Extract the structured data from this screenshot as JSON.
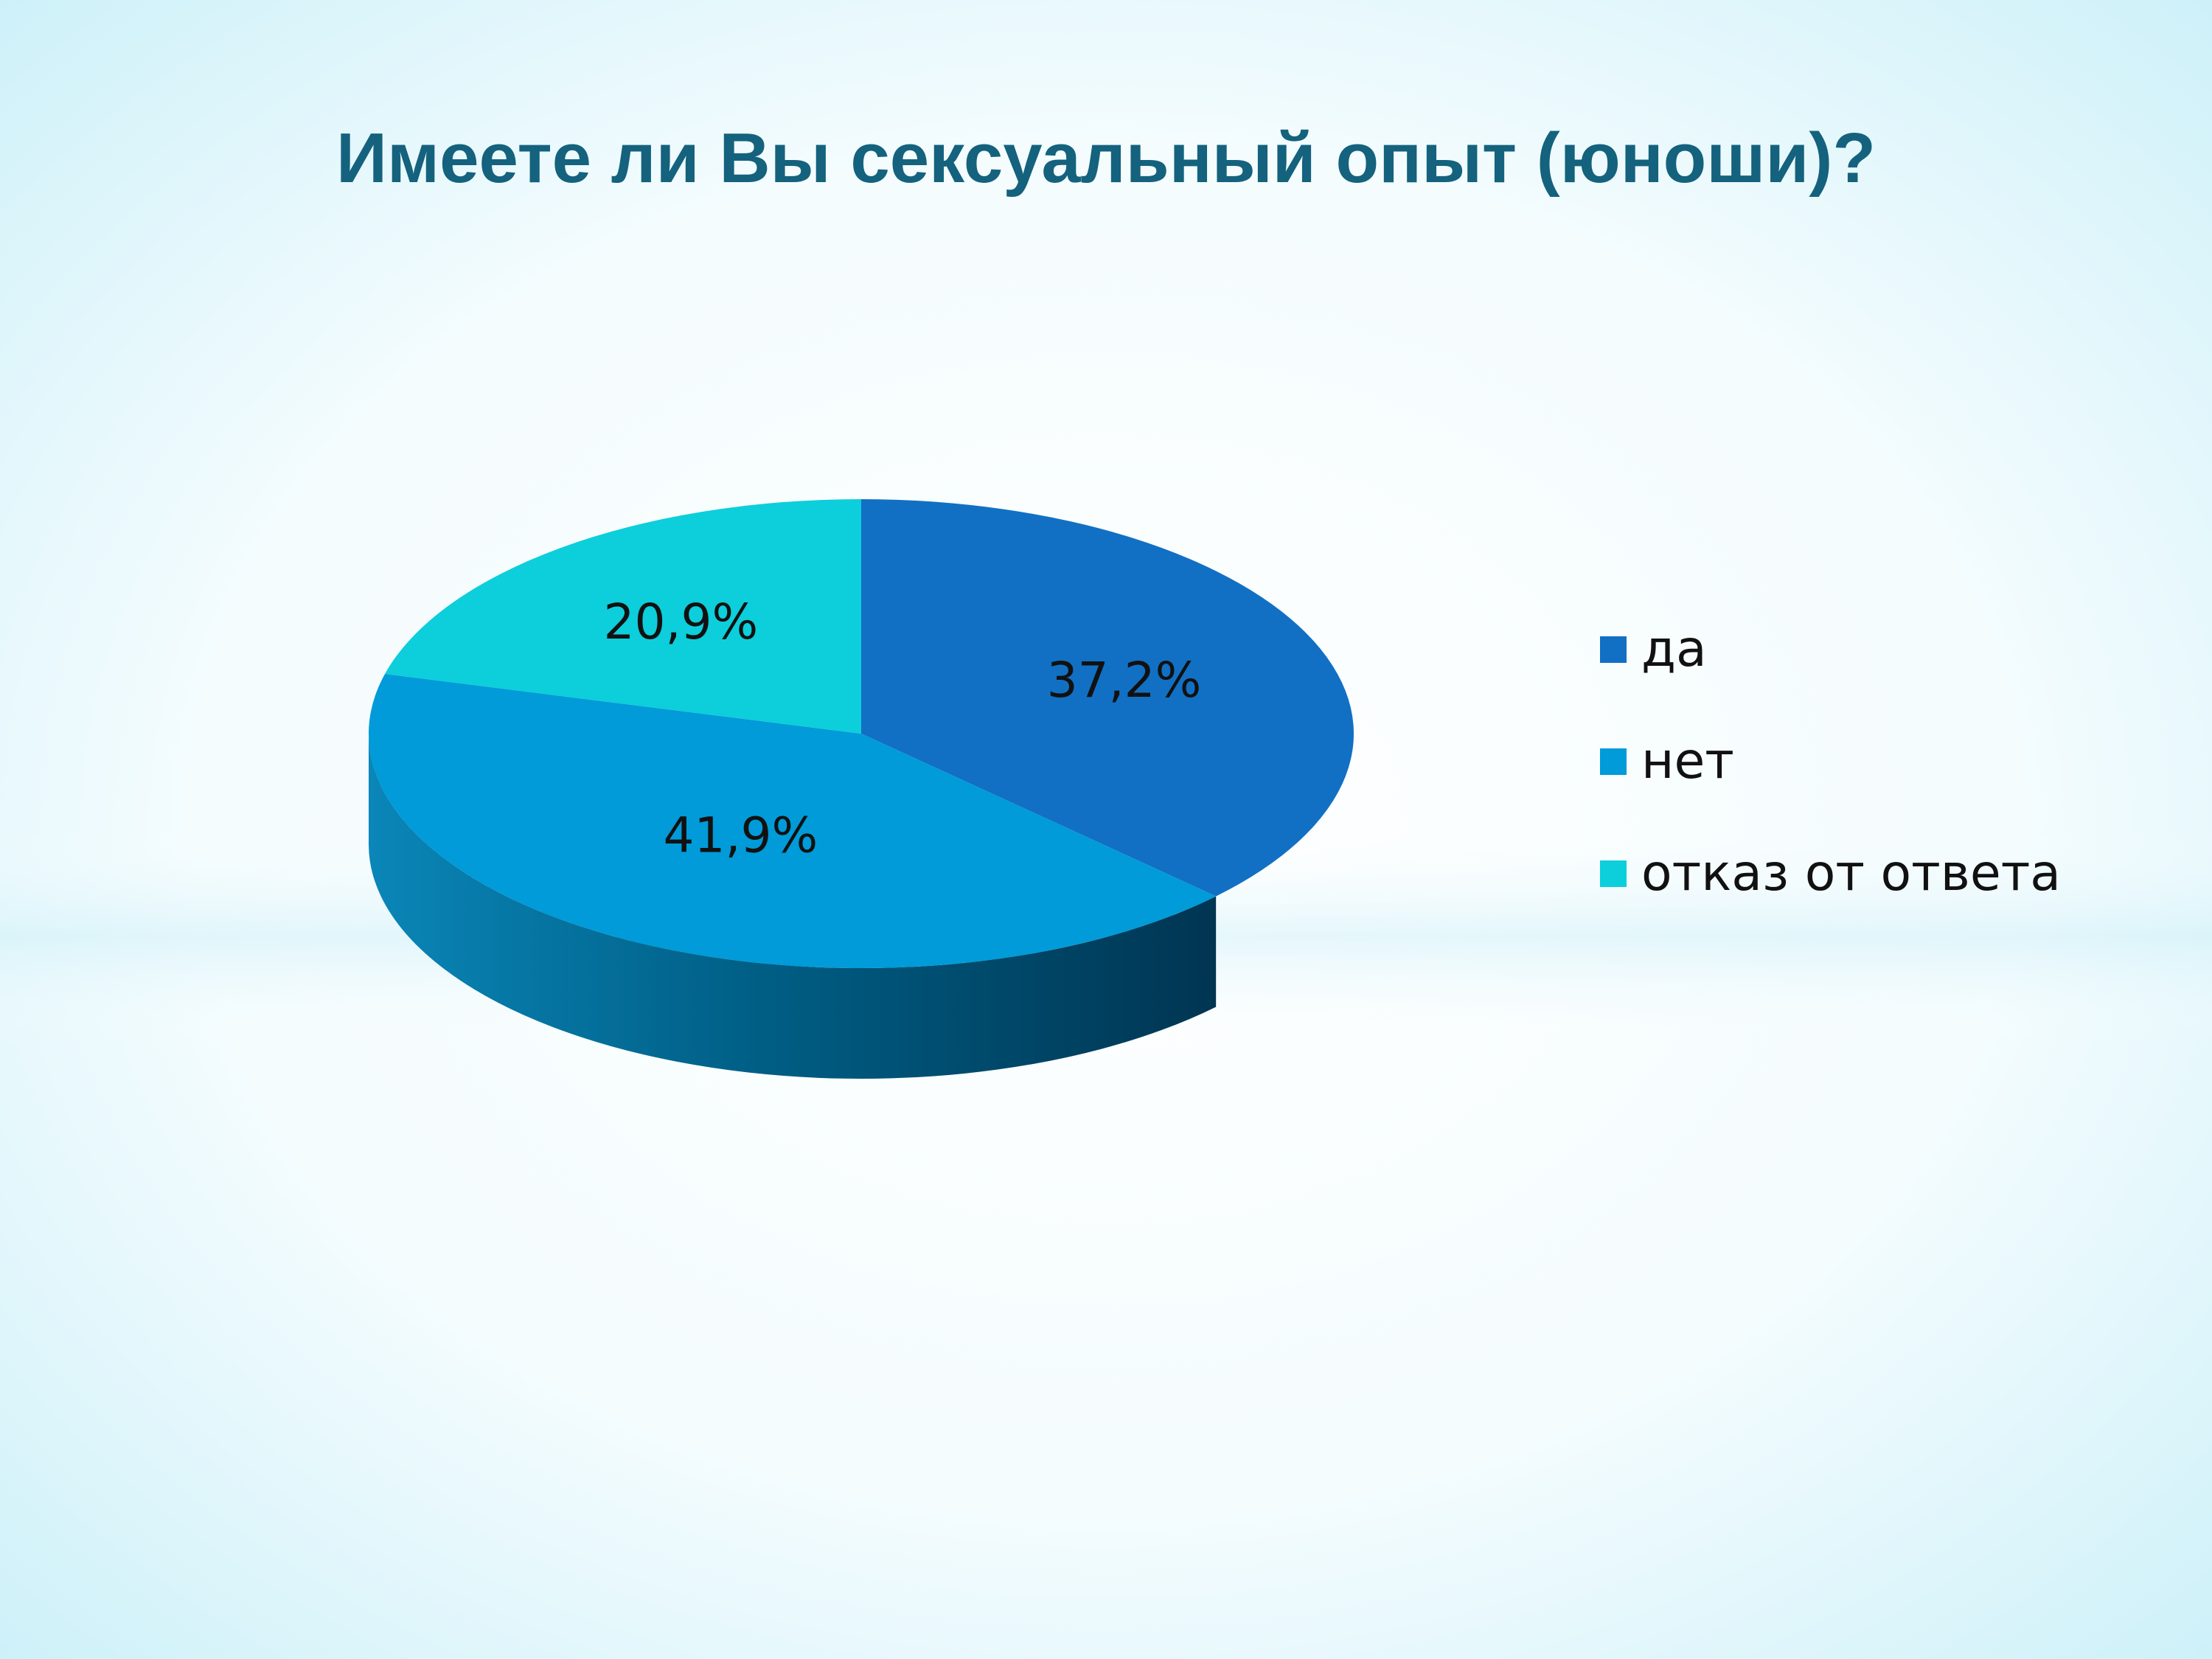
{
  "colors": {
    "background_edge": "#cdf1f9",
    "background_center": "#ffffff",
    "title": "#14627d"
  },
  "chart_data": {
    "type": "pie",
    "title": "Имеете ли Вы сексуальный опыт (юноши)?",
    "style": "3d",
    "legend_position": "right",
    "slices": [
      {
        "label": "да",
        "value": 37.2,
        "display": "37,2%",
        "color": "#1170c4"
      },
      {
        "label": "нет",
        "value": 41.9,
        "display": "41,9%",
        "color": "#009bd8"
      },
      {
        "label": "отказ от ответа",
        "value": 20.9,
        "display": "20,9%",
        "color": "#0dcedb"
      }
    ]
  }
}
